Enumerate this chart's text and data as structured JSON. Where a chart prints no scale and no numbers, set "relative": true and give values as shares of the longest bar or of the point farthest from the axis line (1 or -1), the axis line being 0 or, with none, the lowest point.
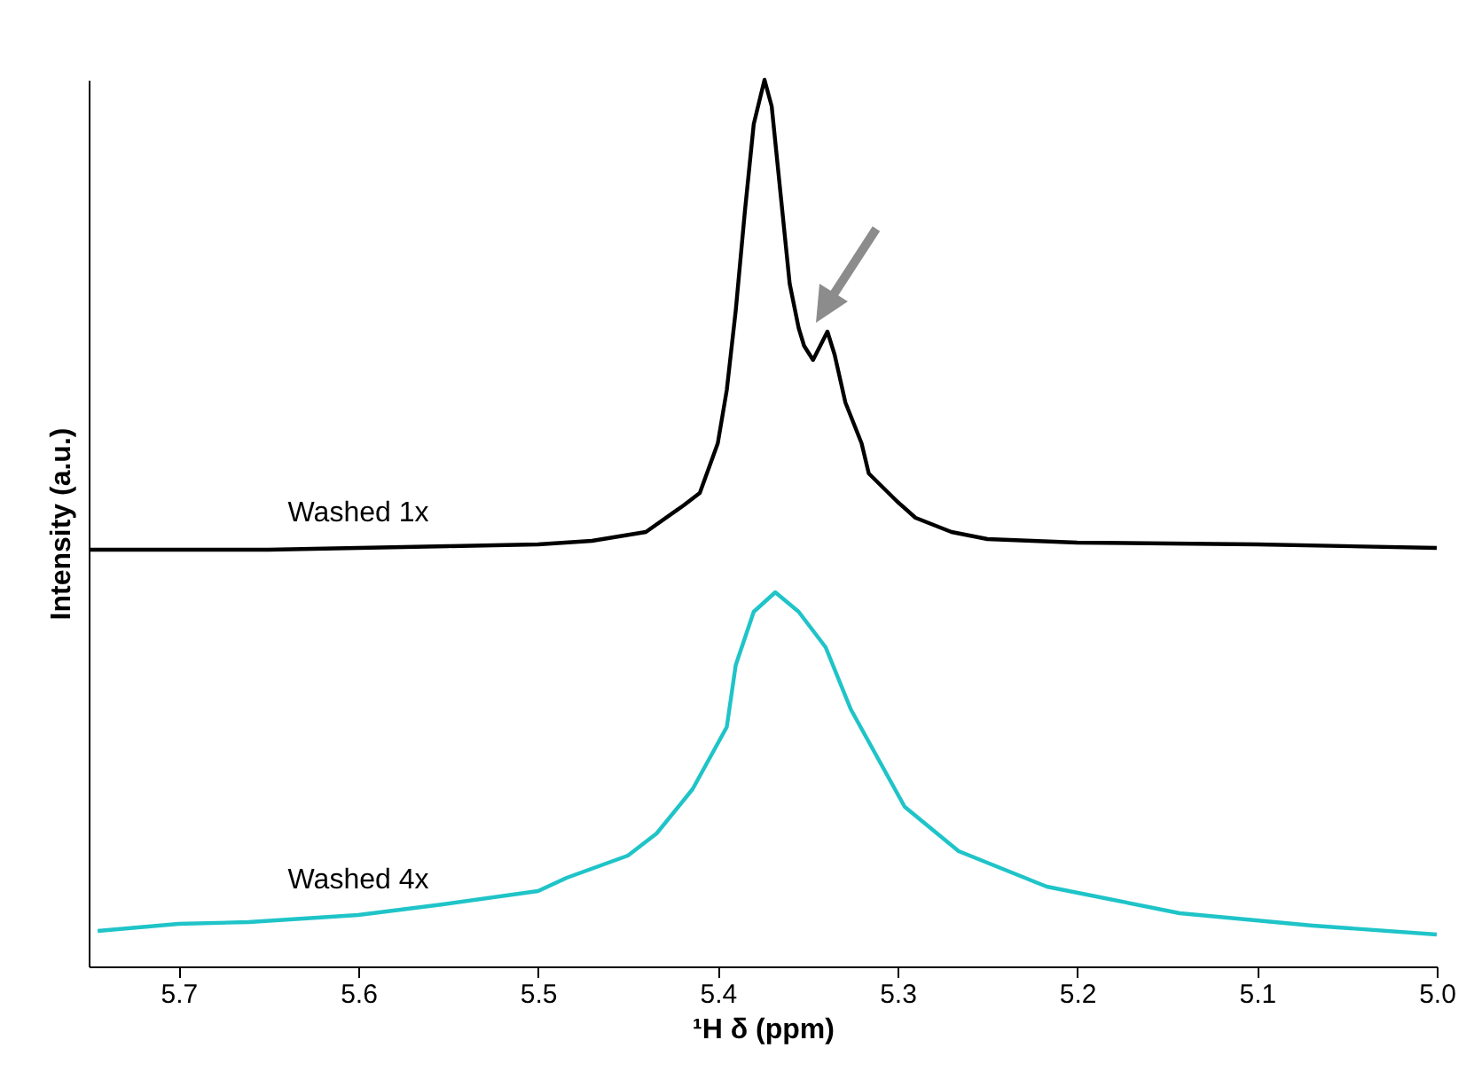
{
  "chart_data": {
    "type": "line",
    "relative": true,
    "xlabel": "¹H δ (ppm)",
    "ylabel": "Intensity (a.u.)",
    "xlim": [
      5.75,
      5.0
    ],
    "xticks": [
      5.7,
      5.6,
      5.5,
      5.4,
      5.3,
      5.2,
      5.1,
      {
        "value": 5.0,
        "label": "5.0"
      }
    ],
    "grid": false,
    "legend": false,
    "marker": "none",
    "line_style": "solid",
    "series": [
      {
        "name": "Washed 1x",
        "color": "#000000",
        "x": [
          5.75,
          5.7,
          5.65,
          5.6,
          5.55,
          5.5,
          5.47,
          5.44,
          5.419,
          5.41,
          5.4,
          5.395,
          5.39,
          5.385,
          5.38,
          5.374,
          5.37,
          5.365,
          5.36,
          5.355,
          5.352,
          5.347,
          5.339,
          5.335,
          5.329,
          5.32,
          5.316,
          5.3,
          5.29,
          5.27,
          5.25,
          5.2,
          5.1,
          5.0
        ],
        "values": [
          0.47,
          0.47,
          0.47,
          0.472,
          0.474,
          0.476,
          0.48,
          0.49,
          0.52,
          0.534,
          0.59,
          0.65,
          0.74,
          0.85,
          0.95,
          1.0,
          0.97,
          0.87,
          0.77,
          0.72,
          0.7,
          0.684,
          0.716,
          0.69,
          0.636,
          0.59,
          0.556,
          0.524,
          0.506,
          0.49,
          0.482,
          0.478,
          0.476,
          0.472
        ]
      },
      {
        "name": "Washed 4x",
        "color": "#1fc4c8",
        "x": [
          5.745,
          5.7,
          5.661,
          5.6,
          5.553,
          5.5,
          5.484,
          5.45,
          5.434,
          5.414,
          5.395,
          5.39,
          5.38,
          5.368,
          5.355,
          5.34,
          5.326,
          5.296,
          5.266,
          5.217,
          5.143,
          5.069,
          5.0
        ],
        "values": [
          0.04,
          0.048,
          0.05,
          0.058,
          0.07,
          0.085,
          0.1,
          0.125,
          0.15,
          0.2,
          0.27,
          0.34,
          0.4,
          0.422,
          0.4,
          0.36,
          0.29,
          0.18,
          0.13,
          0.09,
          0.06,
          0.046,
          0.036
        ]
      }
    ]
  }
}
